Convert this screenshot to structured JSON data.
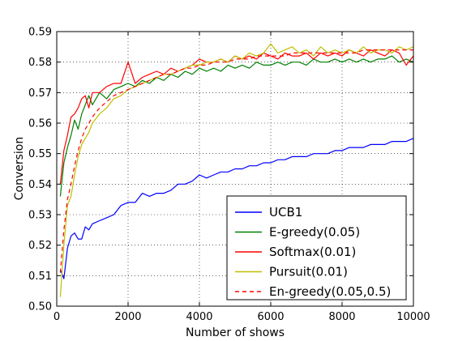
{
  "chart_data": {
    "type": "line",
    "title": "",
    "xlabel": "Number of shows",
    "ylabel": "Conversion",
    "xlim": [
      0,
      10000
    ],
    "ylim": [
      0.5,
      0.59
    ],
    "xticks": [
      "0",
      "2000",
      "4000",
      "6000",
      "8000",
      "10000"
    ],
    "yticks": [
      "0.50",
      "0.51",
      "0.52",
      "0.53",
      "0.54",
      "0.55",
      "0.56",
      "0.57",
      "0.58",
      "0.59"
    ],
    "grid": true,
    "legend_position": "lower-right",
    "series": [
      {
        "name": "UCB1",
        "color": "#0000ff",
        "style": "solid",
        "x": [
          100,
          200,
          300,
          400,
          500,
          600,
          700,
          800,
          900,
          1000,
          1200,
          1400,
          1600,
          1800,
          2000,
          2200,
          2400,
          2600,
          2800,
          3000,
          3200,
          3400,
          3600,
          3800,
          4000,
          4200,
          4400,
          4600,
          4800,
          5000,
          5200,
          5400,
          5600,
          5800,
          6000,
          6200,
          6400,
          6600,
          6800,
          7000,
          7200,
          7400,
          7600,
          7800,
          8000,
          8200,
          8400,
          8600,
          8800,
          9000,
          9200,
          9400,
          9600,
          9800,
          10000
        ],
        "values": [
          0.512,
          0.509,
          0.519,
          0.523,
          0.524,
          0.522,
          0.522,
          0.526,
          0.525,
          0.527,
          0.528,
          0.529,
          0.53,
          0.533,
          0.534,
          0.534,
          0.537,
          0.536,
          0.537,
          0.537,
          0.538,
          0.54,
          0.54,
          0.541,
          0.543,
          0.542,
          0.543,
          0.544,
          0.544,
          0.545,
          0.545,
          0.546,
          0.546,
          0.547,
          0.547,
          0.548,
          0.548,
          0.549,
          0.549,
          0.549,
          0.55,
          0.55,
          0.55,
          0.551,
          0.551,
          0.552,
          0.552,
          0.552,
          0.553,
          0.553,
          0.553,
          0.554,
          0.554,
          0.554,
          0.555
        ]
      },
      {
        "name": "E-greedy(0.05)",
        "color": "#008000",
        "style": "solid",
        "x": [
          100,
          200,
          300,
          400,
          500,
          600,
          700,
          800,
          900,
          1000,
          1200,
          1400,
          1600,
          1800,
          2000,
          2200,
          2400,
          2600,
          2800,
          3000,
          3200,
          3400,
          3600,
          3800,
          4000,
          4200,
          4400,
          4600,
          4800,
          5000,
          5200,
          5400,
          5600,
          5800,
          6000,
          6200,
          6400,
          6600,
          6800,
          7000,
          7200,
          7400,
          7600,
          7800,
          8000,
          8200,
          8400,
          8600,
          8800,
          9000,
          9200,
          9400,
          9600,
          9800,
          10000
        ],
        "values": [
          0.536,
          0.547,
          0.552,
          0.556,
          0.561,
          0.558,
          0.563,
          0.566,
          0.569,
          0.566,
          0.57,
          0.568,
          0.571,
          0.572,
          0.573,
          0.572,
          0.574,
          0.573,
          0.575,
          0.574,
          0.576,
          0.575,
          0.577,
          0.576,
          0.578,
          0.577,
          0.578,
          0.577,
          0.579,
          0.578,
          0.579,
          0.578,
          0.58,
          0.579,
          0.579,
          0.58,
          0.579,
          0.58,
          0.58,
          0.579,
          0.581,
          0.58,
          0.58,
          0.581,
          0.58,
          0.581,
          0.58,
          0.581,
          0.58,
          0.581,
          0.581,
          0.582,
          0.58,
          0.581,
          0.58
        ]
      },
      {
        "name": "Softmax(0.01)",
        "color": "#ff0000",
        "style": "solid",
        "x": [
          100,
          200,
          300,
          400,
          500,
          600,
          700,
          800,
          900,
          1000,
          1200,
          1400,
          1600,
          1800,
          2000,
          2200,
          2400,
          2600,
          2800,
          3000,
          3200,
          3400,
          3600,
          3800,
          4000,
          4200,
          4400,
          4600,
          4800,
          5000,
          5200,
          5400,
          5600,
          5800,
          6000,
          6200,
          6400,
          6600,
          6800,
          7000,
          7200,
          7400,
          7600,
          7800,
          8000,
          8200,
          8400,
          8600,
          8800,
          9000,
          9200,
          9400,
          9600,
          9800,
          10000
        ],
        "values": [
          0.54,
          0.551,
          0.556,
          0.562,
          0.563,
          0.565,
          0.568,
          0.569,
          0.565,
          0.57,
          0.57,
          0.572,
          0.573,
          0.573,
          0.58,
          0.573,
          0.575,
          0.576,
          0.577,
          0.576,
          0.578,
          0.577,
          0.578,
          0.579,
          0.581,
          0.58,
          0.58,
          0.581,
          0.58,
          0.582,
          0.581,
          0.582,
          0.581,
          0.583,
          0.582,
          0.581,
          0.583,
          0.582,
          0.582,
          0.583,
          0.581,
          0.583,
          0.582,
          0.583,
          0.582,
          0.584,
          0.583,
          0.582,
          0.584,
          0.583,
          0.582,
          0.584,
          0.583,
          0.579,
          0.582
        ]
      },
      {
        "name": "Pursuit(0.01)",
        "color": "#bfbf00",
        "style": "solid",
        "x": [
          100,
          200,
          300,
          400,
          500,
          600,
          700,
          800,
          900,
          1000,
          1200,
          1400,
          1600,
          1800,
          2000,
          2200,
          2400,
          2600,
          2800,
          3000,
          3200,
          3400,
          3600,
          3800,
          4000,
          4200,
          4400,
          4600,
          4800,
          5000,
          5200,
          5400,
          5600,
          5800,
          6000,
          6200,
          6400,
          6600,
          6800,
          7000,
          7200,
          7400,
          7600,
          7800,
          8000,
          8200,
          8400,
          8600,
          8800,
          9000,
          9200,
          9400,
          9600,
          9800,
          10000
        ],
        "values": [
          0.503,
          0.52,
          0.533,
          0.536,
          0.543,
          0.549,
          0.553,
          0.555,
          0.557,
          0.56,
          0.563,
          0.565,
          0.568,
          0.569,
          0.571,
          0.572,
          0.573,
          0.574,
          0.575,
          0.576,
          0.576,
          0.577,
          0.578,
          0.579,
          0.579,
          0.58,
          0.58,
          0.581,
          0.58,
          0.582,
          0.581,
          0.583,
          0.582,
          0.583,
          0.586,
          0.583,
          0.584,
          0.585,
          0.583,
          0.584,
          0.582,
          0.585,
          0.583,
          0.584,
          0.583,
          0.584,
          0.583,
          0.585,
          0.583,
          0.584,
          0.584,
          0.583,
          0.585,
          0.584,
          0.585
        ]
      },
      {
        "name": "En-greedy(0.05,0.5)",
        "color": "#ff0000",
        "style": "dashed",
        "x": [
          100,
          200,
          300,
          400,
          500,
          600,
          700,
          800,
          900,
          1000,
          1200,
          1400,
          1600,
          1800,
          2000,
          2200,
          2400,
          2600,
          2800,
          3000,
          3200,
          3400,
          3600,
          3800,
          4000,
          4200,
          4400,
          4600,
          4800,
          5000,
          5200,
          5400,
          5600,
          5800,
          6000,
          6200,
          6400,
          6600,
          6800,
          7000,
          7200,
          7400,
          7600,
          7800,
          8000,
          8200,
          8400,
          8600,
          8800,
          9000,
          9200,
          9400,
          9600,
          9800,
          10000
        ],
        "values": [
          0.511,
          0.525,
          0.535,
          0.54,
          0.546,
          0.551,
          0.555,
          0.558,
          0.56,
          0.562,
          0.565,
          0.567,
          0.569,
          0.57,
          0.571,
          0.572,
          0.573,
          0.574,
          0.575,
          0.576,
          0.576,
          0.577,
          0.578,
          0.578,
          0.579,
          0.579,
          0.58,
          0.58,
          0.58,
          0.581,
          0.581,
          0.581,
          0.582,
          0.582,
          0.582,
          0.582,
          0.582,
          0.583,
          0.583,
          0.583,
          0.583,
          0.583,
          0.583,
          0.583,
          0.583,
          0.583,
          0.583,
          0.584,
          0.584,
          0.584,
          0.584,
          0.584,
          0.584,
          0.584,
          0.584
        ]
      }
    ]
  }
}
